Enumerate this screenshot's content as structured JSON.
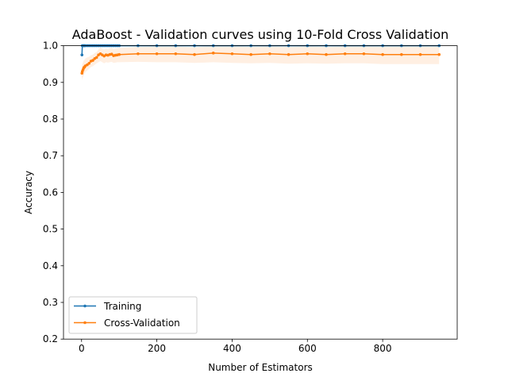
{
  "chart_data": {
    "type": "line",
    "title": "AdaBoost - Validation curves using 10-Fold Cross Validation",
    "xlabel": "Number of Estimators",
    "ylabel": "Accuracy",
    "xlim": [
      -48,
      998
    ],
    "ylim": [
      0.2,
      1.0
    ],
    "xticks": [
      0,
      200,
      400,
      600,
      800
    ],
    "yticks": [
      0.2,
      0.3,
      0.4,
      0.5,
      0.6,
      0.7,
      0.8,
      0.9,
      1.0
    ],
    "legend": "lower-left",
    "grid": false,
    "x": [
      1,
      2,
      4,
      6,
      8,
      10,
      15,
      20,
      25,
      30,
      35,
      40,
      45,
      50,
      55,
      60,
      65,
      70,
      75,
      80,
      85,
      90,
      95,
      100,
      150,
      200,
      250,
      300,
      350,
      400,
      450,
      500,
      550,
      600,
      650,
      700,
      750,
      800,
      850,
      900,
      950
    ],
    "series": [
      {
        "name": "Training",
        "color": "#1f77b4",
        "values": [
          0.975,
          1.0,
          1.0,
          1.0,
          1.0,
          1.0,
          1.0,
          1.0,
          1.0,
          1.0,
          1.0,
          1.0,
          1.0,
          1.0,
          1.0,
          1.0,
          1.0,
          1.0,
          1.0,
          1.0,
          1.0,
          1.0,
          1.0,
          1.0,
          1.0,
          1.0,
          1.0,
          1.0,
          1.0,
          1.0,
          1.0,
          1.0,
          1.0,
          1.0,
          1.0,
          1.0,
          1.0,
          1.0,
          1.0,
          1.0,
          1.0
        ]
      },
      {
        "name": "Cross-Validation",
        "color": "#ff7f0e",
        "values": [
          0.925,
          0.93,
          0.935,
          0.94,
          0.942,
          0.945,
          0.948,
          0.952,
          0.958,
          0.96,
          0.965,
          0.968,
          0.975,
          0.978,
          0.975,
          0.972,
          0.975,
          0.974,
          0.976,
          0.977,
          0.973,
          0.974,
          0.975,
          0.976,
          0.978,
          0.978,
          0.978,
          0.976,
          0.98,
          0.978,
          0.976,
          0.978,
          0.976,
          0.978,
          0.976,
          0.978,
          0.978,
          0.976,
          0.976,
          0.976,
          0.976
        ],
        "band_lower": [
          0.905,
          0.91,
          0.915,
          0.92,
          0.924,
          0.928,
          0.932,
          0.937,
          0.942,
          0.944,
          0.948,
          0.952,
          0.955,
          0.958,
          0.955,
          0.952,
          0.955,
          0.954,
          0.955,
          0.956,
          0.953,
          0.954,
          0.955,
          0.955,
          0.956,
          0.955,
          0.955,
          0.953,
          0.955,
          0.953,
          0.952,
          0.953,
          0.951,
          0.952,
          0.951,
          0.952,
          0.952,
          0.95,
          0.95,
          0.95,
          0.95
        ],
        "band_upper": [
          0.945,
          0.95,
          0.955,
          0.96,
          0.962,
          0.965,
          0.968,
          0.97,
          0.974,
          0.976,
          0.98,
          0.983,
          0.99,
          0.995,
          0.992,
          0.99,
          0.992,
          0.991,
          0.993,
          0.994,
          0.991,
          0.992,
          0.993,
          0.994,
          0.997,
          0.998,
          0.998,
          0.996,
          1.0,
          0.999,
          0.997,
          0.999,
          0.997,
          0.999,
          0.997,
          0.999,
          0.999,
          0.998,
          0.998,
          0.998,
          0.998
        ]
      }
    ]
  }
}
